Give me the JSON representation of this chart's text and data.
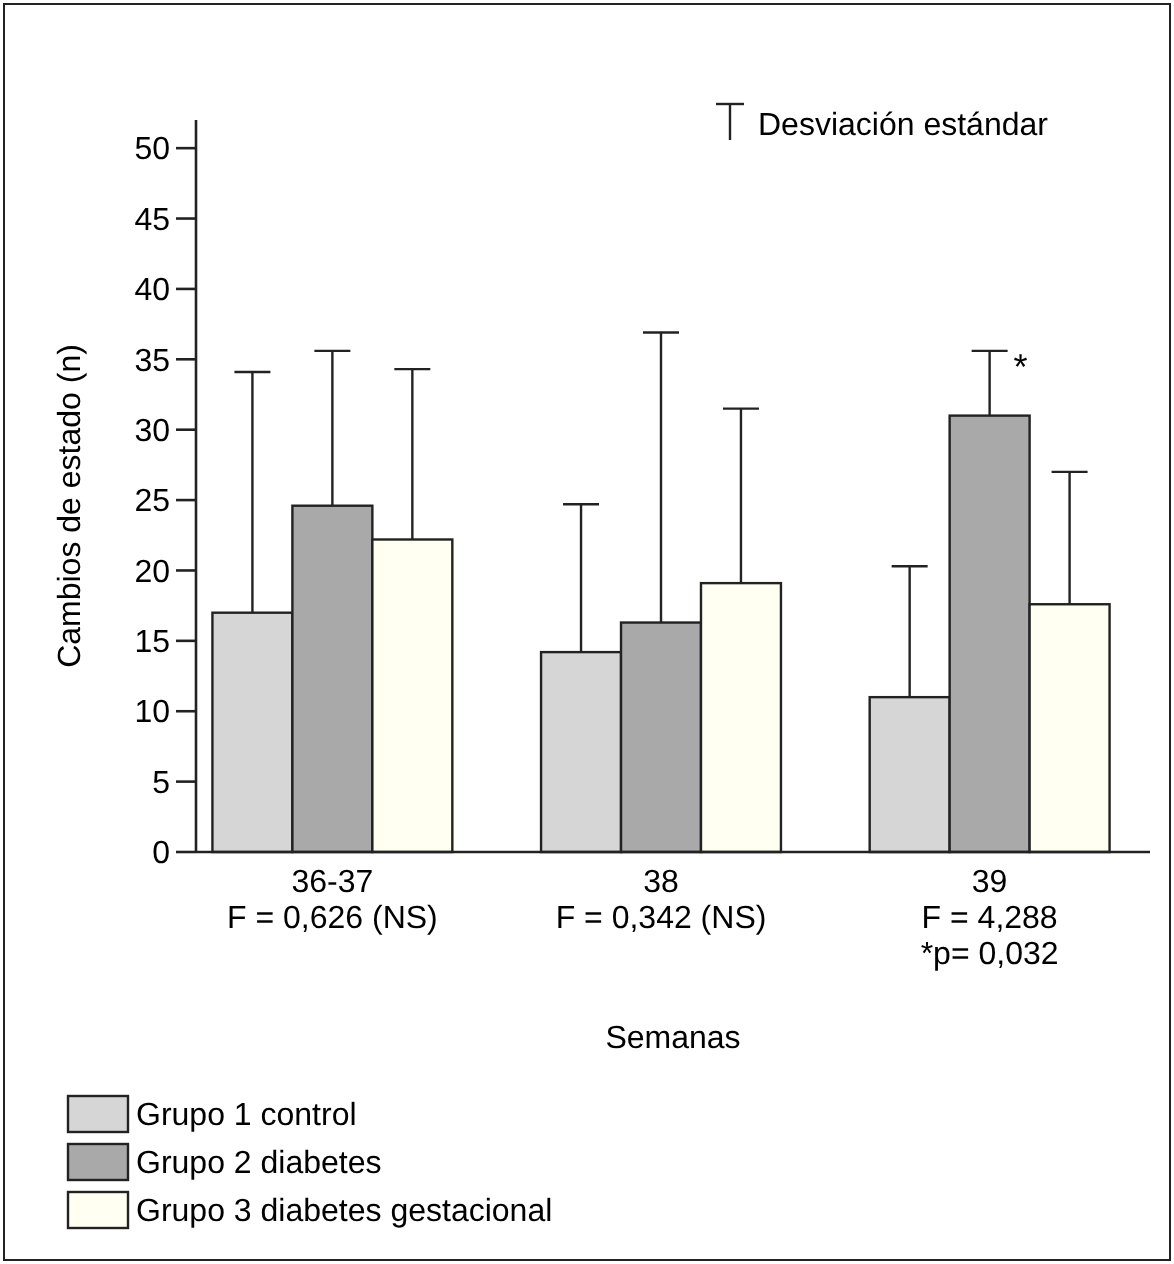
{
  "chart_data": {
    "type": "bar",
    "xlabel": "Semanas",
    "ylabel": "Cambios de estado (n)",
    "categories": [
      "36-37\nF = 0,626 (NS)",
      "38\nF = 0,342 (NS)",
      "39\nF = 4,288\n*p= 0,032"
    ],
    "series": [
      {
        "name": "Grupo 1 control",
        "color": "#d6d6d6",
        "values": [
          17,
          14.2,
          11
        ],
        "errors": [
          [
            17,
            34.1
          ],
          [
            14.2,
            24.7
          ],
          [
            11,
            20.3
          ]
        ]
      },
      {
        "name": "Grupo 2 diabetes",
        "color": "#a9a9a9",
        "values": [
          24.6,
          16.3,
          31
        ],
        "errors": [
          [
            24.6,
            35.6
          ],
          [
            16.3,
            36.9
          ],
          [
            31,
            35.6
          ]
        ]
      },
      {
        "name": "Grupo 3 diabetes gestacional",
        "color": "#fffff2",
        "values": [
          22.2,
          19.1,
          17.6
        ],
        "errors": [
          [
            22.2,
            34.3
          ],
          [
            19.1,
            31.5
          ],
          [
            17.6,
            27
          ]
        ]
      }
    ],
    "ylim": [
      0,
      52
    ],
    "yticks": [
      0,
      5,
      10,
      15,
      20,
      25,
      30,
      35,
      40,
      45,
      50
    ],
    "grid": false,
    "legend": "bottom",
    "annotations": [
      "Desviación estándar",
      {
        "text": "*",
        "x": "39\nF = 4,288\n*p= 0,032",
        "y": 35.6
      }
    ]
  }
}
